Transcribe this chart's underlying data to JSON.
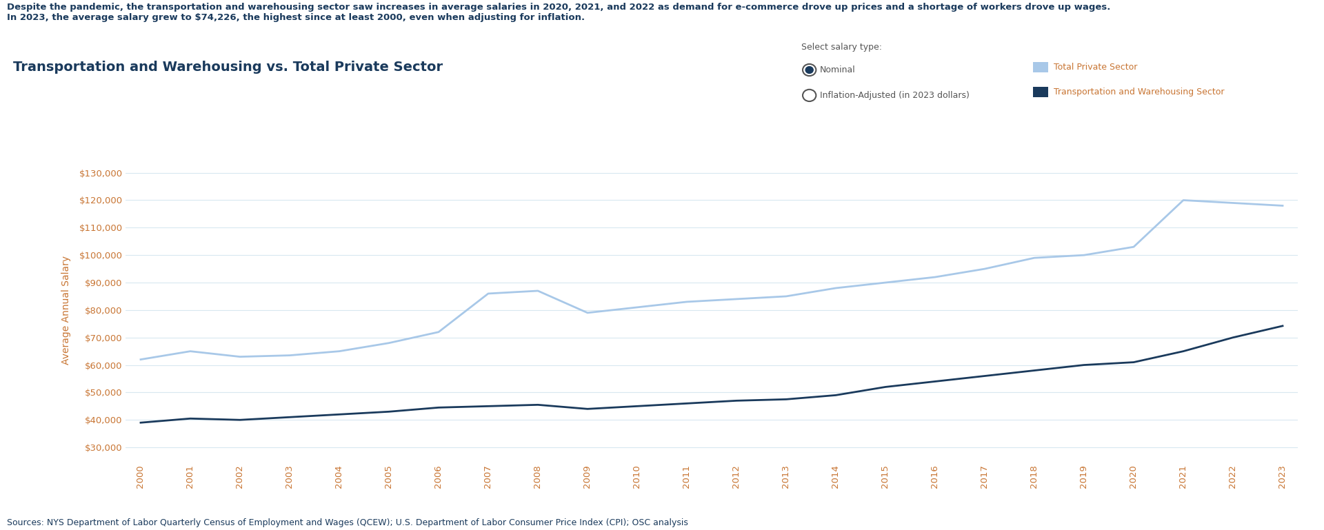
{
  "years": [
    2000,
    2001,
    2002,
    2003,
    2004,
    2005,
    2006,
    2007,
    2008,
    2009,
    2010,
    2011,
    2012,
    2013,
    2014,
    2015,
    2016,
    2017,
    2018,
    2019,
    2020,
    2021,
    2022,
    2023
  ],
  "total_private": [
    62000,
    65000,
    63000,
    63500,
    65000,
    68000,
    72000,
    86000,
    87000,
    79000,
    81000,
    83000,
    84000,
    85000,
    88000,
    90000,
    92000,
    95000,
    99000,
    100000,
    103000,
    120000,
    119000,
    118000
  ],
  "transport_warehousing": [
    39000,
    40500,
    40000,
    41000,
    42000,
    43000,
    44500,
    45000,
    45500,
    44000,
    45000,
    46000,
    47000,
    47500,
    49000,
    52000,
    54000,
    56000,
    58000,
    60000,
    61000,
    65000,
    70000,
    74226
  ],
  "total_private_color": "#a8c8e8",
  "transport_color": "#1a3a5c",
  "title": "Transportation and Warehousing vs. Total Private Sector",
  "ylabel": "Average Annual Salary",
  "subtitle_bold": "Despite the pandemic, the transportation and warehousing sector saw increases in average salaries in 2020, 2021, and 2022 as demand for e-commerce drove up prices and a shortage of workers drove up wages.\nIn 2023, the average salary grew to $74,226, the highest since at least 2000, even when adjusting for inflation.",
  "source_text": "Sources: NYS Department of Labor Quarterly Census of Employment and Wages (QCEW); U.S. Department of Labor Consumer Price Index (CPI); OSC analysis",
  "legend_label_1": "Total Private Sector",
  "legend_label_2": "Transportation and Warehousing Sector",
  "radio_label_1": "Nominal",
  "radio_label_2": "Inflation-Adjusted (in 2023 dollars)",
  "select_salary_type": "Select salary type:",
  "ylim_min": 25000,
  "ylim_max": 135000,
  "yticks": [
    30000,
    40000,
    50000,
    60000,
    70000,
    80000,
    90000,
    100000,
    110000,
    120000,
    130000
  ],
  "background_color": "#ffffff",
  "grid_color": "#d8e8f0",
  "title_color": "#1a3a5c",
  "subtitle_color": "#1a3a5c",
  "axis_label_color": "#c87533",
  "tick_label_color": "#c87533",
  "source_color": "#1a3a5c",
  "legend_text_color": "#c87533"
}
